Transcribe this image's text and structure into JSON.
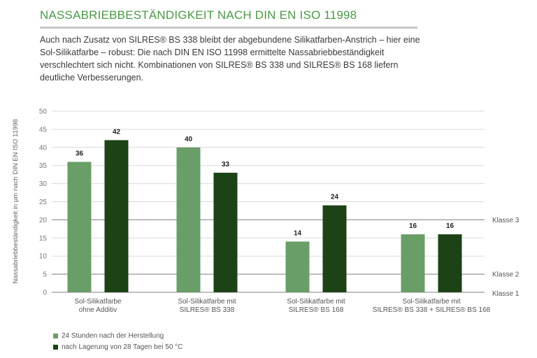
{
  "title": "NASSABRIEBBESTÄNDIGKEIT NACH DIN EN ISO 11998",
  "intro": "Auch nach Zusatz von SILRES® BS 338 bleibt der abgebundene Silikatfarben-Anstrich – hier eine Sol-Silikatfarbe – robust: Die nach DIN EN ISO 11998 ermittelte Nassabriebbeständigkeit verschlechtert sich nicht. Kombinationen von SILRES® BS 338 und SILRES® BS 168 liefern deutliche Verbesserungen.",
  "colors": {
    "light_green": "#6a9e68",
    "dark_green": "#1c4216",
    "title_green": "#4a9a46"
  },
  "chart_data": {
    "type": "bar",
    "ylabel": "Nassabriebbeständigkeit in µm nach DIN EN ISO 11998",
    "ylim": [
      0,
      50
    ],
    "yticks": [
      0,
      5,
      10,
      15,
      20,
      25,
      30,
      35,
      40,
      45,
      50
    ],
    "categories": [
      [
        "Sol-Silikatfarbe",
        "ohne Additiv"
      ],
      [
        "Sol-Silikatfarbe mit",
        "SILRES® BS 338"
      ],
      [
        "Sol-Silikatfarbe mit",
        "SILRES® BS 168"
      ],
      [
        "Sol-Silikatfarbe mit",
        "SILRES® BS 338 + SILRES® BS 168"
      ]
    ],
    "series": [
      {
        "name": "24 Stunden nach der Herstellung",
        "color": "#6a9e68",
        "values": [
          36,
          40,
          14,
          16
        ]
      },
      {
        "name": "nach Lagerung von 28 Tagen bei 50 °C",
        "color": "#1c4216",
        "values": [
          42,
          33,
          24,
          16
        ]
      }
    ],
    "class_lines": [
      {
        "label": "Klasse 3",
        "value": 20
      },
      {
        "label": "Klasse 2",
        "value": 5
      },
      {
        "label": "Klasse 1",
        "value": 0
      }
    ],
    "grid": true,
    "legend": "bottom-left"
  }
}
